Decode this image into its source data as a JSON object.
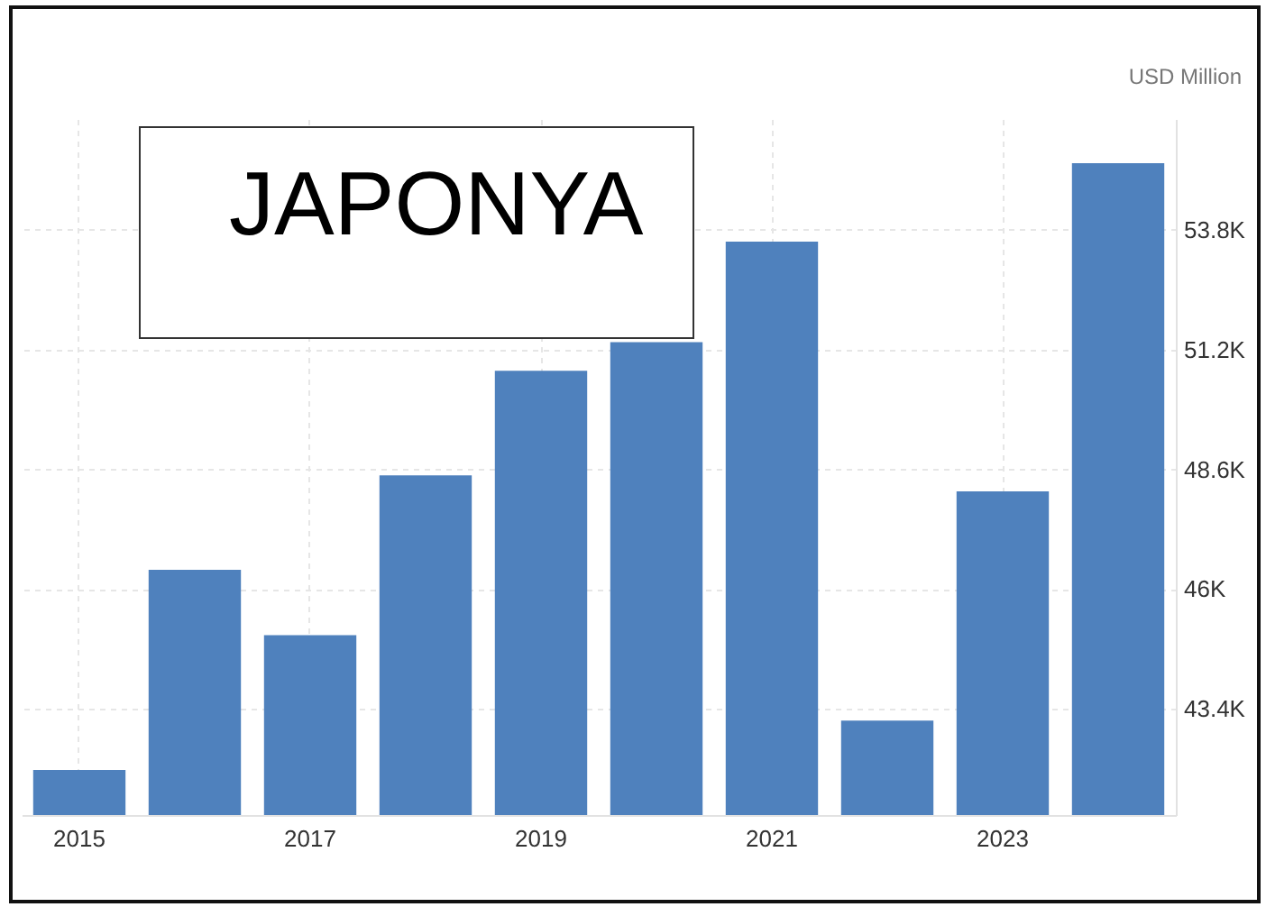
{
  "chart_data": {
    "type": "bar",
    "title": "JAPONYA",
    "ylabel": "USD Million",
    "categories": [
      "2015",
      null,
      "2017",
      null,
      "2019",
      null,
      "2021",
      null,
      "2023",
      null
    ],
    "values": [
      42080,
      46420,
      45000,
      48470,
      50740,
      51360,
      53540,
      43150,
      48120,
      55240
    ],
    "color": "#4f81bd",
    "ylim": [
      41100,
      56200
    ],
    "yticks": [
      {
        "value": 43400,
        "label": "43.4K"
      },
      {
        "value": 46000,
        "label": "46K"
      },
      {
        "value": 48600,
        "label": "48.6K"
      },
      {
        "value": 51200,
        "label": "51.2K"
      },
      {
        "value": 53800,
        "label": "53.8K"
      }
    ],
    "grid": true
  }
}
